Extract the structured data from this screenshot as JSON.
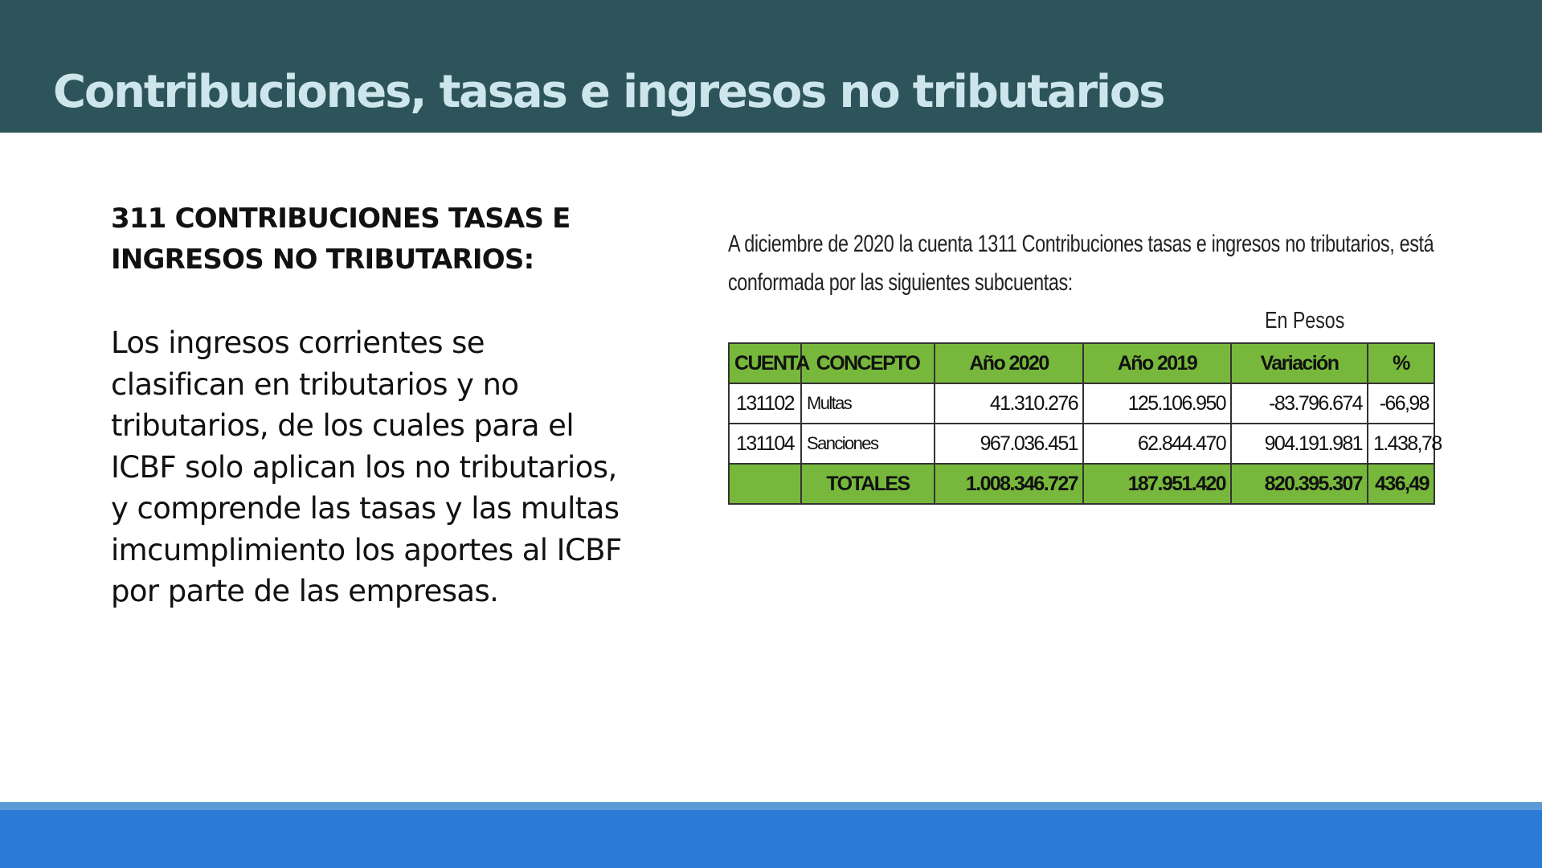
{
  "slide": {
    "title": "Contribuciones, tasas e ingresos no tributarios"
  },
  "left": {
    "heading": "311 CONTRIBUCIONES TASAS E INGRESOS NO TRIBUTARIOS:",
    "body": "Los ingresos corrientes se clasifican en tributarios y no tributarios, de los cuales para el ICBF solo aplican los no tributarios, y comprende las tasas y las multas imcumplimiento los aportes al ICBF por parte de las empresas."
  },
  "right": {
    "intro": "A diciembre de 2020 la cuenta 1311 Contribuciones tasas e ingresos no tributarios, está conformada por las siguientes subcuentas:",
    "unit": "En Pesos",
    "table": {
      "headers": [
        "CUENTA",
        "CONCEPTO",
        "Año 2020",
        "Año 2019",
        "Variación",
        "%"
      ],
      "rows": [
        {
          "cuenta": "131102",
          "concepto": "Multas",
          "y2020": "41.310.276",
          "y2019": "125.106.950",
          "variacion": "-83.796.674",
          "pct": "-66,98"
        },
        {
          "cuenta": "131104",
          "concepto": "Sanciones",
          "y2020": "967.036.451",
          "y2019": "62.844.470",
          "variacion": "904.191.981",
          "pct": "1.438,78"
        }
      ],
      "totals": {
        "label": "TOTALES",
        "y2020": "1.008.346.727",
        "y2019": "187.951.420",
        "variacion": "820.395.307",
        "pct": "436,49"
      }
    }
  },
  "colors": {
    "title_bar": "#2d545a",
    "title_text": "#cde6ec",
    "table_green": "#77b83c",
    "footer_blue": "#2a7ad6",
    "footer_stripe": "#5b9bd5"
  }
}
